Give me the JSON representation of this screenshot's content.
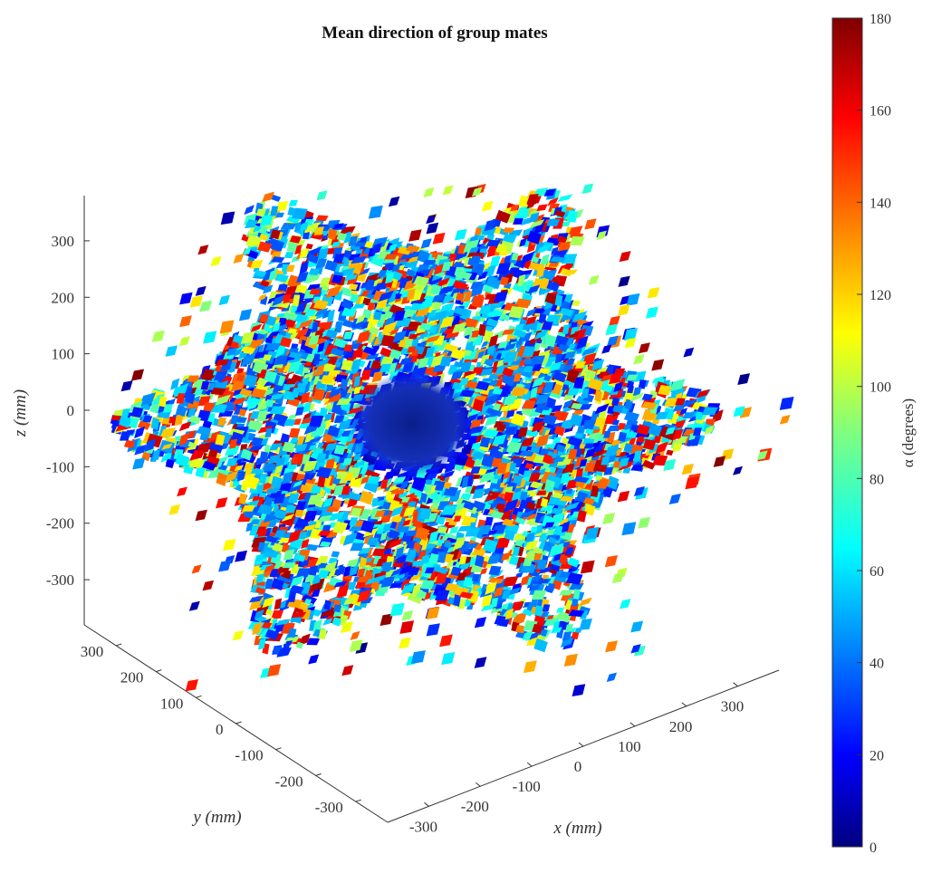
{
  "chart_data": {
    "type": "scatter3d-voxel",
    "title": "Mean direction of group mates",
    "xlabel": "x (mm)",
    "ylabel": "y (mm)",
    "zlabel": "z (mm)",
    "x_ticks": [
      -300,
      -200,
      -100,
      0,
      100,
      200,
      300
    ],
    "y_ticks": [
      300,
      200,
      100,
      0,
      -100,
      -200,
      -300
    ],
    "z_ticks": [
      300,
      200,
      100,
      0,
      -100,
      -200,
      -300
    ],
    "xlim": [
      -380,
      380
    ],
    "ylim": [
      -380,
      380
    ],
    "zlim": [
      -380,
      380
    ],
    "colorbar": {
      "label": "α (degrees)",
      "colormap": "jet",
      "range": [
        0,
        180
      ],
      "ticks": [
        0,
        20,
        40,
        60,
        80,
        100,
        120,
        140,
        160,
        180
      ]
    },
    "description_values": {
      "center_region_alpha": 20,
      "typical_alpha_range": [
        0,
        180
      ]
    }
  }
}
